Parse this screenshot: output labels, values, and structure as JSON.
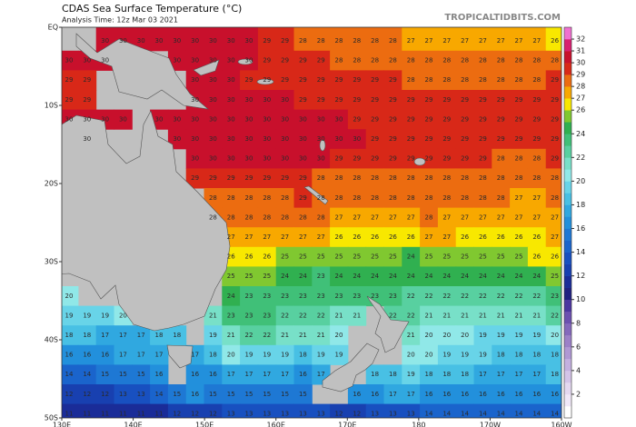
{
  "header": {
    "title": "CDAS Sea Surface Temperature (°C)",
    "subtitle": "Analysis Time: 12z Mar 03 2021",
    "watermark": "TROPICALTIDBITS.COM"
  },
  "map": {
    "lon_ticks": [
      {
        "value": 130,
        "label": "130E"
      },
      {
        "value": 140,
        "label": "140E"
      },
      {
        "value": 150,
        "label": "150E"
      },
      {
        "value": 160,
        "label": "160E"
      },
      {
        "value": 170,
        "label": "170E"
      },
      {
        "value": 180,
        "label": "180"
      },
      {
        "value": 190,
        "label": "170W"
      },
      {
        "value": 200,
        "label": "160W"
      }
    ],
    "lat_ticks": [
      {
        "value": 0,
        "label": "EQ"
      },
      {
        "value": -10,
        "label": "10S"
      },
      {
        "value": -20,
        "label": "20S"
      },
      {
        "value": -30,
        "label": "30S"
      },
      {
        "value": -40,
        "label": "40S"
      },
      {
        "value": -50,
        "label": "50S"
      }
    ],
    "rows": [
      [
        null,
        null,
        30,
        30,
        30,
        30,
        30,
        30,
        30,
        30,
        30,
        29,
        29,
        28,
        28,
        28,
        28,
        28,
        28,
        27,
        27,
        27,
        27,
        27,
        27,
        27,
        27,
        26
      ],
      [
        30,
        30,
        30,
        null,
        null,
        null,
        30,
        30,
        30,
        30,
        30,
        29,
        29,
        29,
        29,
        28,
        28,
        28,
        28,
        28,
        28,
        28,
        28,
        28,
        28,
        28,
        28,
        28
      ],
      [
        29,
        29,
        null,
        null,
        null,
        null,
        null,
        30,
        30,
        30,
        29,
        29,
        29,
        29,
        29,
        29,
        29,
        29,
        29,
        28,
        28,
        28,
        28,
        28,
        28,
        28,
        28,
        29
      ],
      [
        29,
        29,
        null,
        null,
        null,
        null,
        null,
        30,
        30,
        30,
        30,
        30,
        30,
        29,
        29,
        29,
        29,
        29,
        29,
        29,
        29,
        29,
        29,
        29,
        29,
        29,
        29,
        29
      ],
      [
        30,
        30,
        30,
        30,
        null,
        30,
        30,
        30,
        30,
        30,
        30,
        30,
        30,
        30,
        30,
        30,
        29,
        29,
        29,
        29,
        29,
        29,
        29,
        29,
        29,
        29,
        29,
        29
      ],
      [
        null,
        30,
        null,
        null,
        null,
        null,
        30,
        30,
        30,
        30,
        30,
        30,
        30,
        30,
        30,
        30,
        30,
        29,
        29,
        29,
        29,
        29,
        29,
        29,
        29,
        29,
        29,
        29
      ],
      [
        null,
        null,
        null,
        null,
        null,
        null,
        null,
        30,
        30,
        30,
        30,
        30,
        30,
        30,
        30,
        29,
        29,
        29,
        29,
        29,
        29,
        29,
        29,
        29,
        28,
        28,
        28,
        29
      ],
      [
        null,
        null,
        null,
        null,
        null,
        null,
        null,
        29,
        29,
        29,
        29,
        29,
        29,
        29,
        28,
        28,
        28,
        28,
        28,
        28,
        28,
        28,
        28,
        28,
        28,
        28,
        28,
        28
      ],
      [
        null,
        null,
        null,
        null,
        null,
        null,
        null,
        null,
        28,
        28,
        28,
        28,
        28,
        29,
        28,
        28,
        28,
        28,
        28,
        28,
        28,
        28,
        28,
        28,
        28,
        27,
        27,
        28
      ],
      [
        null,
        null,
        null,
        null,
        null,
        null,
        null,
        null,
        28,
        28,
        28,
        28,
        28,
        28,
        28,
        27,
        27,
        27,
        27,
        27,
        28,
        27,
        27,
        27,
        27,
        27,
        27,
        27
      ],
      [
        null,
        null,
        null,
        null,
        null,
        null,
        null,
        null,
        null,
        27,
        27,
        27,
        27,
        27,
        27,
        26,
        26,
        26,
        26,
        26,
        27,
        27,
        26,
        26,
        26,
        26,
        26,
        27
      ],
      [
        null,
        null,
        null,
        null,
        null,
        null,
        null,
        null,
        null,
        26,
        26,
        26,
        25,
        25,
        25,
        25,
        25,
        25,
        25,
        24,
        25,
        25,
        25,
        25,
        25,
        25,
        26,
        26
      ],
      [
        null,
        null,
        null,
        null,
        null,
        null,
        null,
        null,
        null,
        25,
        25,
        25,
        24,
        24,
        23,
        24,
        24,
        24,
        24,
        24,
        24,
        24,
        24,
        24,
        24,
        24,
        24,
        25
      ],
      [
        20,
        null,
        null,
        null,
        null,
        null,
        null,
        null,
        null,
        24,
        23,
        23,
        23,
        23,
        23,
        23,
        23,
        23,
        23,
        22,
        22,
        22,
        22,
        22,
        22,
        22,
        22,
        23
      ],
      [
        19,
        19,
        19,
        20,
        null,
        null,
        null,
        null,
        21,
        23,
        23,
        23,
        22,
        22,
        22,
        21,
        21,
        null,
        22,
        22,
        21,
        21,
        21,
        21,
        21,
        21,
        21,
        22
      ],
      [
        18,
        18,
        17,
        17,
        17,
        18,
        18,
        null,
        19,
        21,
        22,
        22,
        21,
        21,
        21,
        20,
        null,
        null,
        null,
        21,
        20,
        20,
        20,
        19,
        19,
        19,
        19,
        20
      ],
      [
        16,
        16,
        16,
        17,
        17,
        17,
        null,
        17,
        18,
        20,
        19,
        19,
        19,
        18,
        19,
        19,
        null,
        null,
        null,
        20,
        20,
        19,
        19,
        19,
        18,
        18,
        18,
        18
      ],
      [
        14,
        14,
        15,
        15,
        15,
        16,
        null,
        16,
        16,
        17,
        17,
        17,
        17,
        16,
        17,
        null,
        null,
        18,
        18,
        19,
        18,
        18,
        18,
        17,
        17,
        17,
        17,
        18
      ],
      [
        12,
        12,
        12,
        13,
        13,
        14,
        15,
        16,
        15,
        15,
        15,
        15,
        15,
        15,
        null,
        null,
        16,
        16,
        17,
        17,
        16,
        16,
        16,
        16,
        16,
        16,
        16,
        16
      ],
      [
        11,
        11,
        11,
        11,
        11,
        11,
        12,
        12,
        12,
        13,
        13,
        13,
        13,
        13,
        13,
        12,
        12,
        13,
        13,
        13,
        14,
        14,
        14,
        14,
        14,
        14,
        14,
        14
      ]
    ]
  },
  "colorbar": {
    "range": [
      0,
      33
    ],
    "ticks": [
      2,
      4,
      6,
      8,
      10,
      12,
      14,
      16,
      18,
      20,
      22,
      24,
      26,
      27,
      28,
      29,
      30,
      31,
      32
    ],
    "colors": [
      "#ffffff",
      "#f0e8f8",
      "#e4d8f0",
      "#d4c4e8",
      "#c4b0e0",
      "#b098d4",
      "#9c80c8",
      "#8468bc",
      "#6c50b0",
      "#4c36a0",
      "#202080",
      "#1a2c98",
      "#1840b0",
      "#1850c0",
      "#1a64cc",
      "#1e78d4",
      "#2290dc",
      "#30a8e0",
      "#48c0e4",
      "#68d4e8",
      "#90e8e8",
      "#78e0c8",
      "#58d0a0",
      "#40c078",
      "#30b050",
      "#80c830",
      "#f8e800",
      "#f8a800",
      "#ec6c10",
      "#d82818",
      "#c8102c",
      "#d82070",
      "#f070d0"
    ]
  }
}
